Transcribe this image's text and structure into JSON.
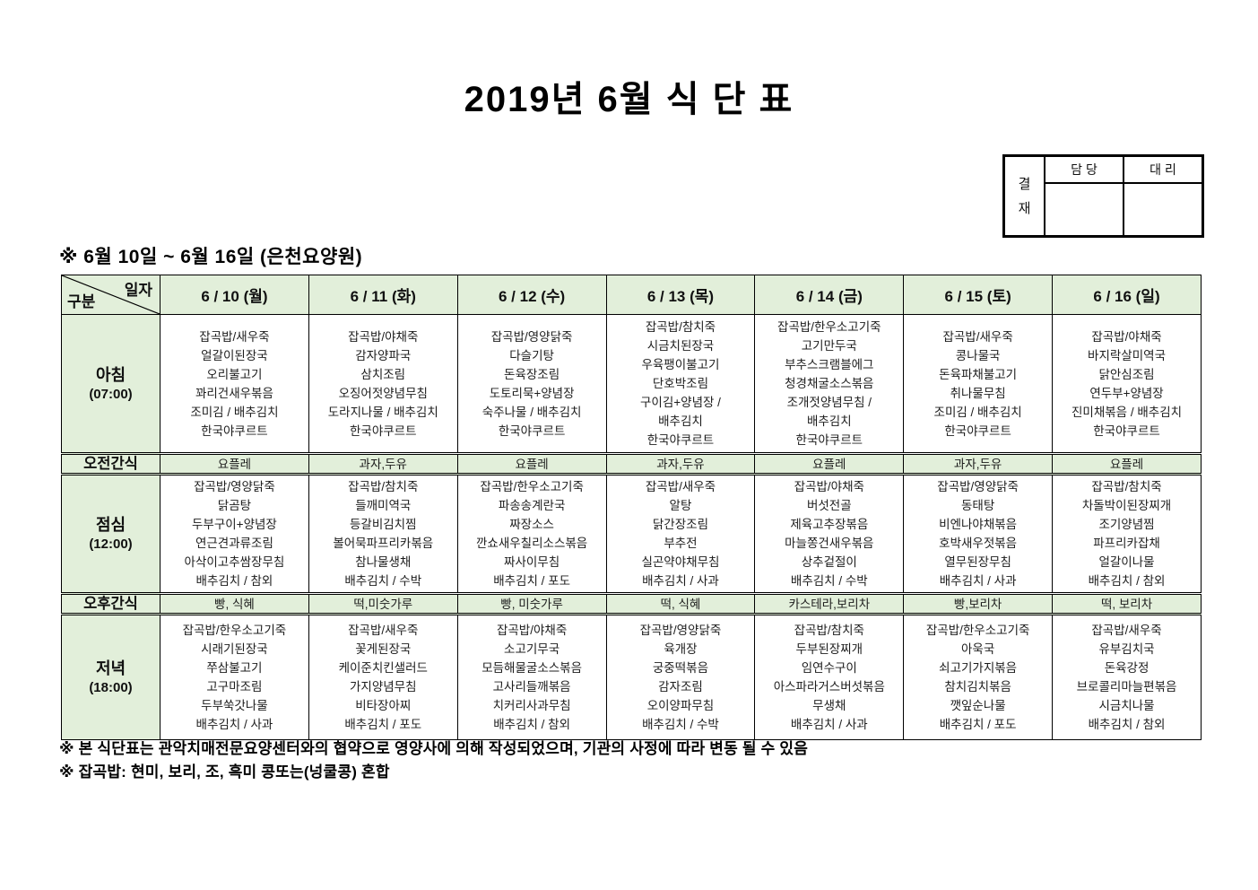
{
  "title": "2019년 6월 식 단 표",
  "subtitle": "※ 6월 10일 ~ 6월 16일 (은천요양원)",
  "approval": {
    "stamp_label": "결재",
    "columns": [
      "담 당",
      "대 리"
    ]
  },
  "colors": {
    "cell_green": "#E2EFDA",
    "border": "#000000"
  },
  "table": {
    "corner": {
      "top_label": "일자",
      "bottom_label": "구분"
    },
    "days": [
      "6 / 10 (월)",
      "6 / 11 (화)",
      "6 / 12 (수)",
      "6 / 13 (목)",
      "6 / 14 (금)",
      "6 / 15 (토)",
      "6 / 16 (일)"
    ],
    "rows": [
      {
        "type": "meal",
        "key": "breakfast",
        "label": "아침",
        "time": "(07:00)",
        "cells": [
          [
            "잡곡밥/새우죽",
            "얼갈이된장국",
            "오리불고기",
            "꽈리건새우볶음",
            "조미김 / 배추김치",
            "한국야쿠르트"
          ],
          [
            "잡곡밥/야채죽",
            "감자양파국",
            "삼치조림",
            "오징어젓양념무침",
            "도라지나물 / 배추김치",
            "한국야쿠르트"
          ],
          [
            "잡곡밥/영양닭죽",
            "다슬기탕",
            "돈육장조림",
            "도토리묵+양념장",
            "숙주나물 / 배추김치",
            "한국야쿠르트"
          ],
          [
            "잡곡밥/참치죽",
            "시금치된장국",
            "우육팽이불고기",
            "단호박조림",
            "구이김+양념장 /",
            "배추김치",
            "한국야쿠르트"
          ],
          [
            "잡곡밥/한우소고기죽",
            "고기만두국",
            "부추스크램블에그",
            "청경채굴소스볶음",
            "조개젓양념무침 /",
            "배추김치",
            "한국야쿠르트"
          ],
          [
            "잡곡밥/새우죽",
            "콩나물국",
            "돈육파채불고기",
            "취나물무침",
            "조미김 / 배추김치",
            "한국야쿠르트"
          ],
          [
            "잡곡밥/야채죽",
            "바지락살미역국",
            "닭안심조림",
            "연두부+양념장",
            "진미채볶음 / 배추김치",
            "한국야쿠르트"
          ]
        ]
      },
      {
        "type": "snack",
        "key": "morning-snack",
        "label": "오전간식",
        "cells": [
          "요플레",
          "과자,두유",
          "요플레",
          "과자,두유",
          "요플레",
          "과자,두유",
          "요플레"
        ]
      },
      {
        "type": "meal",
        "key": "lunch",
        "label": "점심",
        "time": "(12:00)",
        "cells": [
          [
            "잡곡밥/영양닭죽",
            "닭곰탕",
            "두부구이+양념장",
            "연근견과류조림",
            "아삭이고추쌈장무침",
            "배추김치 / 참외"
          ],
          [
            "잡곡밥/참치죽",
            "들깨미역국",
            "등갈비김치찜",
            "볼어묵파프리카볶음",
            "참나물생채",
            "배추김치 / 수박"
          ],
          [
            "잡곡밥/한우소고기죽",
            "파송송계란국",
            "짜장소스",
            "깐쇼새우칠리소스볶음",
            "짜사이무침",
            "배추김치 / 포도"
          ],
          [
            "잡곡밥/새우죽",
            "알탕",
            "닭간장조림",
            "부추전",
            "실곤약야채무침",
            "배추김치 / 사과"
          ],
          [
            "잡곡밥/야채죽",
            "버섯전골",
            "제육고추장볶음",
            "마늘쫑건새우볶음",
            "상추겉절이",
            "배추김치 / 수박"
          ],
          [
            "잡곡밥/영양닭죽",
            "동태탕",
            "비엔나야채볶음",
            "호박새우젓볶음",
            "열무된장무침",
            "배추김치 / 사과"
          ],
          [
            "잡곡밥/참치죽",
            "차돌박이된장찌개",
            "조기양념찜",
            "파프리카잡채",
            "얼갈이나물",
            "배추김치 / 참외"
          ]
        ]
      },
      {
        "type": "snack",
        "key": "afternoon-snack",
        "label": "오후간식",
        "cells": [
          "빵, 식혜",
          "떡,미숫가루",
          "빵, 미숫가루",
          "떡, 식혜",
          "카스테라,보리차",
          "빵,보리차",
          "떡, 보리차"
        ]
      },
      {
        "type": "meal",
        "key": "dinner",
        "label": "저녁",
        "time": "(18:00)",
        "cells": [
          [
            "잡곡밥/한우소고기죽",
            "시래기된장국",
            "쭈삼불고기",
            "고구마조림",
            "두부쑥갓나물",
            "배추김치 / 사과"
          ],
          [
            "잡곡밥/새우죽",
            "꽃게된장국",
            "케이준치킨샐러드",
            "가지양념무침",
            "비타장아찌",
            "배추김치 / 포도"
          ],
          [
            "잡곡밥/야채죽",
            "소고기무국",
            "모듬해물굴소스볶음",
            "고사리들깨볶음",
            "치커리사과무침",
            "배추김치 / 참외"
          ],
          [
            "잡곡밥/영양닭죽",
            "육개장",
            "궁중떡볶음",
            "감자조림",
            "오이양파무침",
            "배추김치 / 수박"
          ],
          [
            "잡곡밥/참치죽",
            "두부된장찌개",
            "임연수구이",
            "아스파라거스버섯볶음",
            "무생채",
            "배추김치 / 사과"
          ],
          [
            "잡곡밥/한우소고기죽",
            "아욱국",
            "쇠고기가지볶음",
            "참치김치볶음",
            "깻잎순나물",
            "배추김치 / 포도"
          ],
          [
            "잡곡밥/새우죽",
            "유부김치국",
            "돈육강정",
            "브로콜리마늘편볶음",
            "시금치나물",
            "배추김치 / 참외"
          ]
        ]
      }
    ]
  },
  "notes": [
    "※ 본 식단표는 관악치매전문요양센터와의 협약으로 영양사에 의해 작성되었으며, 기관의 사정에 따라 변동 될 수 있음",
    "※ 잡곡밥: 현미, 보리, 조, 흑미 콩또는(넝쿨콩) 혼합"
  ]
}
